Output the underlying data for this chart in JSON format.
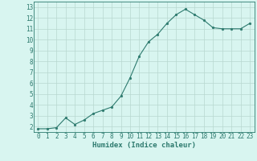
{
  "x": [
    0,
    1,
    2,
    3,
    4,
    5,
    6,
    7,
    8,
    9,
    10,
    11,
    12,
    13,
    14,
    15,
    16,
    17,
    18,
    19,
    20,
    21,
    22,
    23
  ],
  "y": [
    1.8,
    1.8,
    1.9,
    2.8,
    2.2,
    2.6,
    3.2,
    3.5,
    3.8,
    4.8,
    6.5,
    8.5,
    9.8,
    10.5,
    11.5,
    12.3,
    12.8,
    12.3,
    11.8,
    11.1,
    11.0,
    11.0,
    11.0,
    11.5
  ],
  "line_color": "#2d7a6e",
  "marker": "o",
  "marker_size": 2.0,
  "bg_color": "#d8f5f0",
  "grid_color": "#b8d8d0",
  "axis_color": "#2d7a6e",
  "tick_color": "#2d7a6e",
  "xlabel": "Humidex (Indice chaleur)",
  "xlim": [
    -0.5,
    23.5
  ],
  "ylim": [
    1.5,
    13.5
  ],
  "yticks": [
    2,
    3,
    4,
    5,
    6,
    7,
    8,
    9,
    10,
    11,
    12,
    13
  ],
  "xticks": [
    0,
    1,
    2,
    3,
    4,
    5,
    6,
    7,
    8,
    9,
    10,
    11,
    12,
    13,
    14,
    15,
    16,
    17,
    18,
    19,
    20,
    21,
    22,
    23
  ],
  "tick_fontsize": 5.5,
  "xlabel_fontsize": 6.5
}
